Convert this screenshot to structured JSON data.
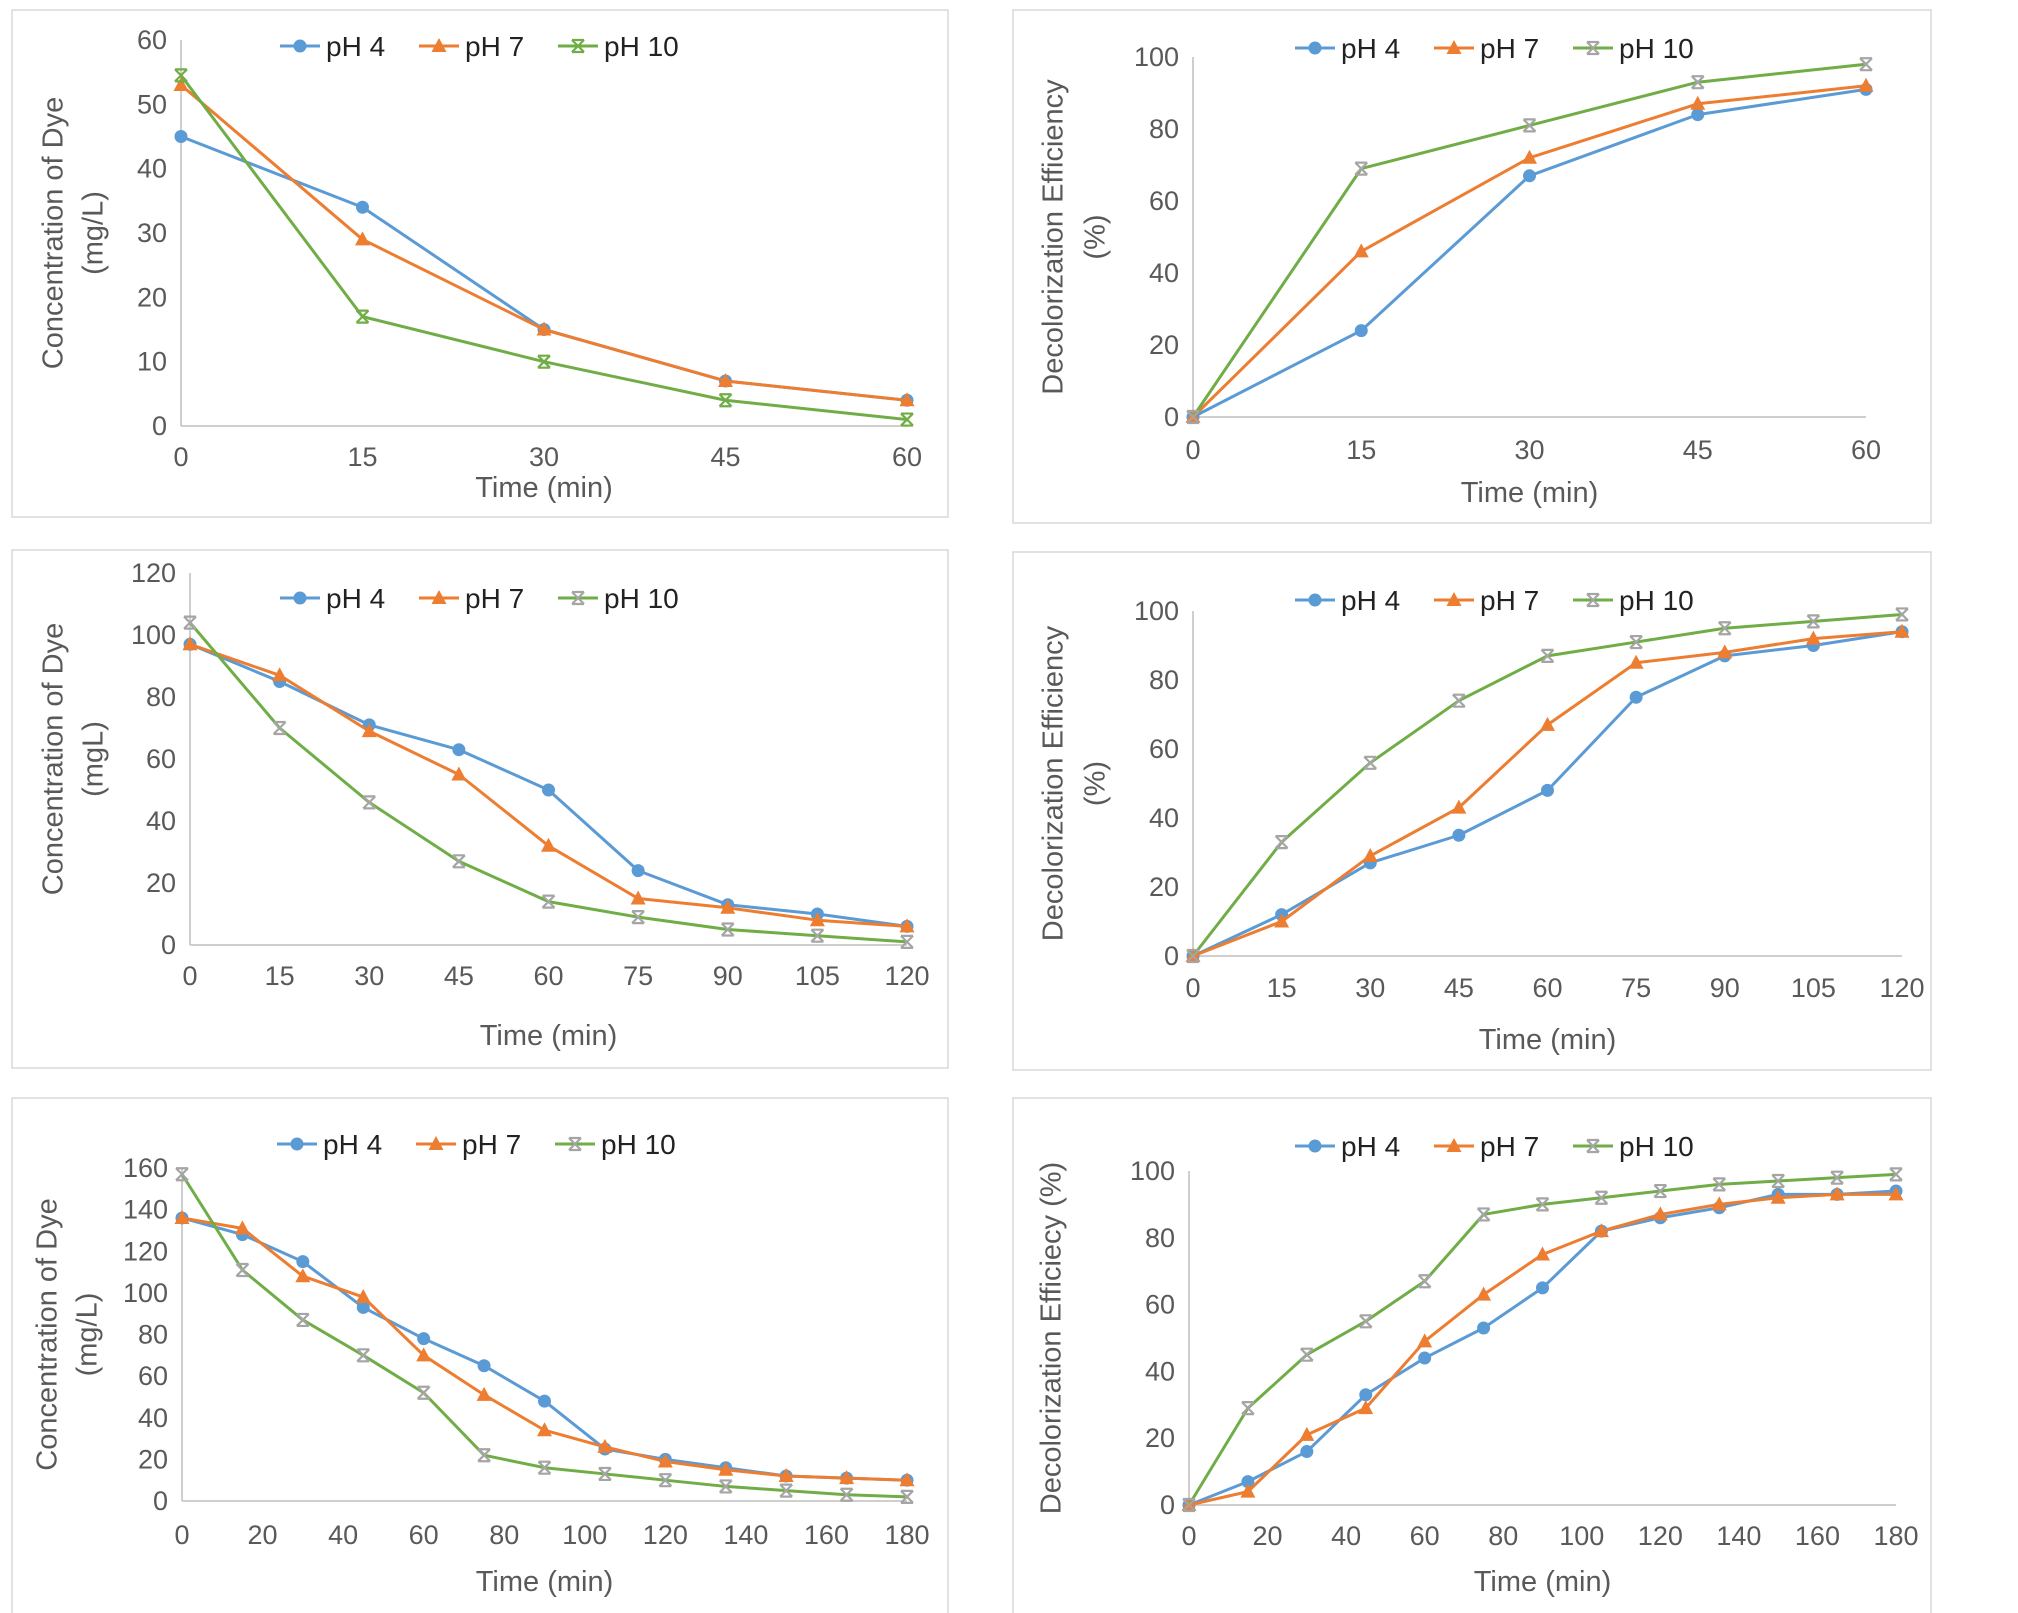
{
  "chart_data": [
    {
      "type": "line",
      "xlabel": "Time (min)",
      "ylabel": [
        "Concentration of Dye",
        "(mg/L)"
      ],
      "x": [
        0,
        15,
        30,
        45,
        60
      ],
      "xticks": [
        "0",
        "15",
        "30",
        "45",
        "60"
      ],
      "ylim": [
        0,
        60
      ],
      "yticks": [
        "0",
        "10",
        "20",
        "30",
        "40",
        "50",
        "60"
      ],
      "grid": false,
      "legend": "top",
      "series": [
        {
          "name": "pH 4",
          "color": "#5b9bd5",
          "marker": "circle",
          "marker_color": "#5b9bd5",
          "values": [
            45,
            34,
            15,
            7,
            4
          ]
        },
        {
          "name": "pH 7",
          "color": "#ed7d31",
          "marker": "triangle",
          "marker_color": "#ed7d31",
          "values": [
            53,
            29,
            15,
            7,
            4
          ]
        },
        {
          "name": "pH 10",
          "color": "#70ad47",
          "marker": "star",
          "marker_color": "#70ad47",
          "values": [
            54.5,
            17,
            10,
            4,
            1
          ]
        }
      ]
    },
    {
      "type": "line",
      "xlabel": "Time (min)",
      "ylabel": [
        "Decolorization Efficiency",
        "(%)"
      ],
      "x": [
        0,
        15,
        30,
        45,
        60
      ],
      "xticks": [
        "0",
        "15",
        "30",
        "45",
        "60"
      ],
      "ylim": [
        0,
        100
      ],
      "yticks": [
        "0",
        "20",
        "40",
        "60",
        "80",
        "100"
      ],
      "grid": false,
      "legend": "top",
      "series": [
        {
          "name": "pH 4",
          "color": "#5b9bd5",
          "marker": "circle",
          "marker_color": "#5b9bd5",
          "values": [
            0,
            24,
            67,
            84,
            91
          ]
        },
        {
          "name": "pH 7",
          "color": "#ed7d31",
          "marker": "triangle",
          "marker_color": "#ed7d31",
          "values": [
            0,
            46,
            72,
            87,
            92
          ]
        },
        {
          "name": "pH 10",
          "color": "#70ad47",
          "marker": "star",
          "marker_color": "#a5a5a5",
          "values": [
            0,
            69,
            81,
            93,
            98
          ]
        }
      ]
    },
    {
      "type": "line",
      "xlabel": "Time (min)",
      "ylabel": [
        "Concentration of Dye",
        "(mgL)"
      ],
      "x": [
        0,
        15,
        30,
        45,
        60,
        75,
        90,
        105,
        120
      ],
      "xticks": [
        "0",
        "15",
        "30",
        "45",
        "60",
        "75",
        "90",
        "105",
        "120"
      ],
      "ylim": [
        0,
        120
      ],
      "yticks": [
        "0",
        "20",
        "40",
        "60",
        "80",
        "100",
        "120"
      ],
      "grid": false,
      "legend": "top",
      "series": [
        {
          "name": "pH 4",
          "color": "#5b9bd5",
          "marker": "circle",
          "marker_color": "#5b9bd5",
          "values": [
            97,
            85,
            71,
            63,
            50,
            24,
            13,
            10,
            6
          ]
        },
        {
          "name": "pH 7",
          "color": "#ed7d31",
          "marker": "triangle",
          "marker_color": "#ed7d31",
          "values": [
            97,
            87,
            69,
            55,
            32,
            15,
            12,
            8,
            6
          ]
        },
        {
          "name": "pH 10",
          "color": "#70ad47",
          "marker": "star",
          "marker_color": "#a5a5a5",
          "values": [
            104,
            70,
            46,
            27,
            14,
            9,
            5,
            3,
            1
          ]
        }
      ]
    },
    {
      "type": "line",
      "xlabel": "Time (min)",
      "ylabel": [
        "Decolorization Efficiency",
        "(%)"
      ],
      "x": [
        0,
        15,
        30,
        45,
        60,
        75,
        90,
        105,
        120
      ],
      "xticks": [
        "0",
        "15",
        "30",
        "45",
        "60",
        "75",
        "90",
        "105",
        "120"
      ],
      "ylim": [
        0,
        100
      ],
      "yticks": [
        "0",
        "20",
        "40",
        "60",
        "80",
        "100"
      ],
      "grid": false,
      "legend": "top",
      "series": [
        {
          "name": "pH 4",
          "color": "#5b9bd5",
          "marker": "circle",
          "marker_color": "#5b9bd5",
          "values": [
            0,
            12,
            27,
            35,
            48,
            75,
            87,
            90,
            94
          ]
        },
        {
          "name": "pH 7",
          "color": "#ed7d31",
          "marker": "triangle",
          "marker_color": "#ed7d31",
          "values": [
            0,
            10,
            29,
            43,
            67,
            85,
            88,
            92,
            94
          ]
        },
        {
          "name": "pH 10",
          "color": "#70ad47",
          "marker": "star",
          "marker_color": "#a5a5a5",
          "values": [
            0,
            33,
            56,
            74,
            87,
            91,
            95,
            97,
            99
          ]
        }
      ]
    },
    {
      "type": "line",
      "xlabel": "Time (min)",
      "ylabel": [
        "Concentration of Dye",
        "(mg/L)"
      ],
      "x": [
        0,
        15,
        30,
        45,
        60,
        75,
        90,
        105,
        120,
        135,
        150,
        165,
        180
      ],
      "xticks": [
        "0",
        "20",
        "40",
        "60",
        "80",
        "100",
        "120",
        "140",
        "160",
        "180"
      ],
      "xtick_values": [
        0,
        20,
        40,
        60,
        80,
        100,
        120,
        140,
        160,
        180
      ],
      "ylim": [
        0,
        160
      ],
      "yticks": [
        "0",
        "20",
        "40",
        "60",
        "80",
        "100",
        "120",
        "140",
        "160"
      ],
      "grid": false,
      "legend": "top",
      "series": [
        {
          "name": "pH 4",
          "color": "#5b9bd5",
          "marker": "circle",
          "marker_color": "#5b9bd5",
          "values": [
            136,
            128,
            115,
            93,
            78,
            65,
            48,
            25,
            20,
            16,
            12,
            11,
            10
          ]
        },
        {
          "name": "pH 7",
          "color": "#ed7d31",
          "marker": "triangle",
          "marker_color": "#ed7d31",
          "values": [
            136,
            131,
            108,
            98,
            70,
            51,
            34,
            26,
            19,
            15,
            12,
            11,
            10
          ]
        },
        {
          "name": "pH 10",
          "color": "#70ad47",
          "marker": "star",
          "marker_color": "#a5a5a5",
          "values": [
            157,
            111,
            87,
            70,
            52,
            22,
            16,
            13,
            10,
            7,
            5,
            3,
            2
          ]
        }
      ]
    },
    {
      "type": "line",
      "xlabel": "Time (min)",
      "ylabel": [
        "Decolorization Efficiecy (%)"
      ],
      "x": [
        0,
        15,
        30,
        45,
        60,
        75,
        90,
        105,
        120,
        135,
        150,
        165,
        180
      ],
      "xticks": [
        "0",
        "20",
        "40",
        "60",
        "80",
        "100",
        "120",
        "140",
        "160",
        "180"
      ],
      "xtick_values": [
        0,
        20,
        40,
        60,
        80,
        100,
        120,
        140,
        160,
        180
      ],
      "ylim": [
        0,
        100
      ],
      "yticks": [
        "0",
        "20",
        "40",
        "60",
        "80",
        "100"
      ],
      "grid": false,
      "legend": "top",
      "series": [
        {
          "name": "pH 4",
          "color": "#5b9bd5",
          "marker": "circle",
          "marker_color": "#5b9bd5",
          "values": [
            0,
            7,
            16,
            33,
            44,
            53,
            65,
            82,
            86,
            89,
            93,
            93,
            94
          ]
        },
        {
          "name": "pH 7",
          "color": "#ed7d31",
          "marker": "triangle",
          "marker_color": "#ed7d31",
          "values": [
            0,
            4,
            21,
            29,
            49,
            63,
            75,
            82,
            87,
            90,
            92,
            93,
            93
          ]
        },
        {
          "name": "pH 10",
          "color": "#70ad47",
          "marker": "star",
          "marker_color": "#a5a5a5",
          "values": [
            0,
            29,
            45,
            55,
            67,
            87,
            90,
            92,
            94,
            96,
            97,
            98,
            99
          ]
        }
      ]
    }
  ]
}
